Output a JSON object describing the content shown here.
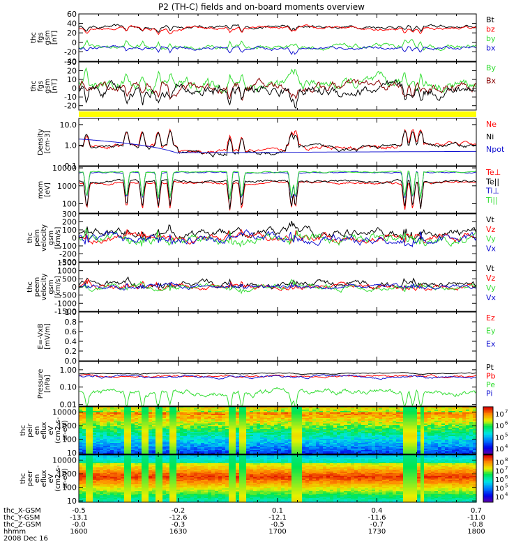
{
  "title": "P2 (TH-C) fields and on-board moments overview",
  "colors": {
    "black": "#000000",
    "red": "#ff0000",
    "green": "#33dd33",
    "blue": "#1010d0",
    "yellow": "#ffff00",
    "dark_red": "#880000"
  },
  "chart_data": [
    {
      "type": "line",
      "id": "fgs",
      "ylabel_lines": [
        "thc",
        "fgs",
        "gsm",
        "[nT]"
      ],
      "ylim": [
        -40,
        60
      ],
      "yticks": [
        "60",
        "40",
        "20",
        "0",
        "-20",
        "-40"
      ],
      "tick_values": [
        60,
        40,
        20,
        0,
        -20,
        -40
      ],
      "series": [
        {
          "name": "Bt",
          "color": "#000000",
          "base": 33,
          "noise": 2,
          "dips": []
        },
        {
          "name": "bz",
          "color": "#ff0000",
          "base": 30,
          "noise": 2,
          "dips": []
        },
        {
          "name": "by",
          "color": "#33dd33",
          "base": -10,
          "noise": 3,
          "dips": []
        },
        {
          "name": "bx",
          "color": "#1010d0",
          "base": -12,
          "noise": 2,
          "dips": []
        }
      ]
    },
    {
      "type": "line",
      "id": "fgs-dsl",
      "ylabel_lines": [
        "thc",
        "fgs",
        "gsm",
        "[nT]"
      ],
      "ylim": [
        -25,
        30
      ],
      "yticks": [
        "30",
        "20",
        "10",
        "0",
        "-10",
        "-20"
      ],
      "tick_values": [
        30,
        20,
        10,
        0,
        -10,
        -20
      ],
      "series": [
        {
          "name": "By",
          "color": "#33dd33",
          "base": 4,
          "noise": 6,
          "dips": []
        },
        {
          "name": "Bx",
          "color": "#880000",
          "base": 2,
          "noise": 5,
          "dips": []
        },
        {
          "name": "",
          "color": "#000000",
          "base": -3,
          "noise": 6,
          "dips": []
        }
      ]
    },
    {
      "type": "bar",
      "id": "mode-bar"
    },
    {
      "type": "line",
      "id": "density",
      "log": true,
      "ylabel_lines": [
        "Density",
        "[cm-3]"
      ],
      "ylim": [
        0.1,
        20
      ],
      "yticks": [
        "10.0",
        "1.0",
        "0.1"
      ],
      "tick_values": [
        10,
        1,
        0.1
      ],
      "series": [
        {
          "name": "Ne",
          "color": "#ff0000",
          "base": 0.9,
          "noise": 0.15,
          "spikes": true
        },
        {
          "name": "Ni",
          "color": "#000000",
          "base": 0.8,
          "noise": 0.15,
          "spikes": true
        },
        {
          "name": "Npot",
          "color": "#1010d0",
          "base": 0.45,
          "noise": 0.05,
          "spikes": false
        }
      ]
    },
    {
      "type": "line",
      "id": "temp",
      "log": true,
      "ylabel_lines": [
        "mom",
        "[eV]"
      ],
      "ylim": [
        30,
        12000
      ],
      "yticks": [
        "10000",
        "1000",
        "100"
      ],
      "tick_values": [
        10000,
        1000,
        100
      ],
      "series": [
        {
          "name": "Te⊥",
          "color": "#ff0000",
          "base": 1500,
          "noise": 0.2,
          "dips": true
        },
        {
          "name": "Te||",
          "color": "#000000",
          "base": 1800,
          "noise": 0.2,
          "dips": true
        },
        {
          "name": "Ti⊥",
          "color": "#1010d0",
          "base": 5500,
          "noise": 0.1,
          "dips": true
        },
        {
          "name": "Ti||",
          "color": "#33dd33",
          "base": 6000,
          "noise": 0.1,
          "dips": true
        }
      ]
    },
    {
      "type": "line",
      "id": "peim",
      "ylabel_lines": [
        "thc",
        "peim",
        "velocity",
        "gsm",
        "[km/s]"
      ],
      "ylim": [
        -300,
        300
      ],
      "yticks": [
        "300",
        "200",
        "100",
        "0",
        "-100",
        "-200",
        "-300"
      ],
      "tick_values": [
        300,
        200,
        100,
        0,
        -100,
        -200,
        -300
      ],
      "series": [
        {
          "name": "Vt",
          "color": "#000000",
          "base": 60,
          "noise": 40
        },
        {
          "name": "Vz",
          "color": "#ff0000",
          "base": 5,
          "noise": 35
        },
        {
          "name": "Vy",
          "color": "#33dd33",
          "base": -20,
          "noise": 45
        },
        {
          "name": "Vx",
          "color": "#1010d0",
          "base": -10,
          "noise": 40
        }
      ]
    },
    {
      "type": "line",
      "id": "peem",
      "ylabel_lines": [
        "thc",
        "peem",
        "velocity",
        "gsm",
        "[km/s]"
      ],
      "ylim": [
        -1500,
        1500
      ],
      "yticks": [
        "1500",
        "1000",
        "500",
        "0",
        "-500",
        "-1000",
        "-1500"
      ],
      "tick_values": [
        1500,
        1000,
        500,
        0,
        -500,
        -1000,
        -1500
      ],
      "series": [
        {
          "name": "Vt",
          "color": "#000000",
          "base": 150,
          "noise": 150
        },
        {
          "name": "Vz",
          "color": "#ff0000",
          "base": 0,
          "noise": 120
        },
        {
          "name": "Vy",
          "color": "#33dd33",
          "base": 0,
          "noise": 120
        },
        {
          "name": "Vx",
          "color": "#1010d0",
          "base": 0,
          "noise": 100
        }
      ]
    },
    {
      "type": "line",
      "id": "efield",
      "ylabel_lines": [
        "E=-VxB",
        "[mV/m]"
      ],
      "ylim": [
        0,
        1
      ],
      "yticks": [
        "1.0",
        "0.8",
        "0.6",
        "0.4",
        "0.2",
        "0.0"
      ],
      "tick_values": [
        1,
        0.8,
        0.6,
        0.4,
        0.2,
        0
      ],
      "series": [
        {
          "name": "Ez",
          "color": "#ff0000"
        },
        {
          "name": "Ey",
          "color": "#33dd33"
        },
        {
          "name": "Ex",
          "color": "#1010d0"
        }
      ]
    },
    {
      "type": "line",
      "id": "pressure",
      "log": true,
      "ylabel_lines": [
        "Pressure",
        "[nPa]"
      ],
      "ylim": [
        0.008,
        3
      ],
      "yticks": [
        "1.00",
        "0.10",
        "0.01"
      ],
      "tick_values": [
        1,
        0.1,
        0.01
      ],
      "series": [
        {
          "name": "Pt",
          "color": "#000000",
          "base": 0.6,
          "noise": 0.04
        },
        {
          "name": "Pb",
          "color": "#ff0000",
          "base": 0.42,
          "noise": 0.08
        },
        {
          "name": "Pe",
          "color": "#33dd33",
          "base": 0.05,
          "noise": 0.25
        },
        {
          "name": "Pi",
          "color": "#1010d0",
          "base": 0.4,
          "noise": 0.1
        }
      ]
    },
    {
      "type": "heatmap",
      "id": "peir",
      "log": true,
      "ylabel_lines": [
        "thc",
        "peir",
        "en",
        "eflux",
        "eV",
        "(cm2-s-",
        "sr-eV)"
      ],
      "ylim": [
        8,
        25000
      ],
      "yticks": [
        "10000",
        "1000",
        "100",
        "10"
      ],
      "tick_values": [
        10000,
        1000,
        100,
        10
      ],
      "colorbar_ticks": [
        "10",
        "10",
        "10",
        "10"
      ],
      "colorbar_exps": [
        "7",
        "6",
        "5",
        "4"
      ]
    },
    {
      "type": "heatmap",
      "id": "peer",
      "log": true,
      "ylabel_lines": [
        "thc",
        "peer",
        "en",
        "eflux",
        "eV",
        "(cm2-s-",
        "sr-eV)"
      ],
      "ylim": [
        8,
        25000
      ],
      "yticks": [
        "10000",
        "1000",
        "100",
        "10"
      ],
      "tick_values": [
        10000,
        1000,
        100,
        10
      ],
      "colorbar_ticks": [
        "10",
        "10",
        "10",
        "10",
        "10"
      ],
      "colorbar_exps": [
        "8",
        "7",
        "6",
        "5",
        "4"
      ]
    }
  ],
  "x_axis": {
    "rows": [
      {
        "label": "thc_X-GSM",
        "values": [
          "-0.5",
          "-0.2",
          "0.1",
          "0.4",
          "0.7"
        ]
      },
      {
        "label": "thc_Y-GSM",
        "values": [
          "-13.1",
          "-12.6",
          "-12.1",
          "-11.6",
          "-11.0"
        ]
      },
      {
        "label": "thc_Z-GSM",
        "values": [
          "-0.0",
          "-0.3",
          "-0.5",
          "-0.7",
          "-0.8"
        ]
      },
      {
        "label": "hhmm",
        "values": [
          "1600",
          "1630",
          "1700",
          "1730",
          "1800"
        ]
      }
    ],
    "date": "2008 Dec 16"
  }
}
